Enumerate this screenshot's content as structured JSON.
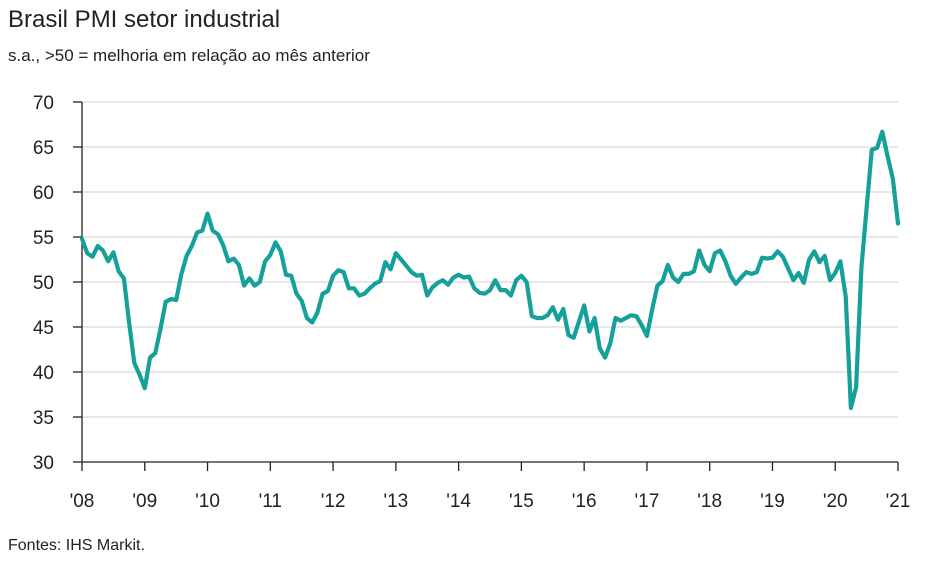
{
  "chart_data": {
    "type": "line",
    "title": "Brasil PMI setor industrial",
    "subtitle": "s.a., >50 = melhoria em relação ao mês anterior",
    "source": "Fontes: IHS Markit.",
    "xlabel": "",
    "ylabel": "",
    "ylim": [
      30,
      70
    ],
    "yticks": [
      30,
      35,
      40,
      45,
      50,
      55,
      60,
      65,
      70
    ],
    "xlim": [
      2008.0,
      2021.0
    ],
    "xticks": [
      {
        "value": 2008,
        "label": "'08"
      },
      {
        "value": 2009,
        "label": "'09"
      },
      {
        "value": 2010,
        "label": "'10"
      },
      {
        "value": 2011,
        "label": "'11"
      },
      {
        "value": 2012,
        "label": "'12"
      },
      {
        "value": 2013,
        "label": "'13"
      },
      {
        "value": 2014,
        "label": "'14"
      },
      {
        "value": 2015,
        "label": "'15"
      },
      {
        "value": 2016,
        "label": "'16"
      },
      {
        "value": 2017,
        "label": "'17"
      },
      {
        "value": 2018,
        "label": "'18"
      },
      {
        "value": 2019,
        "label": "'19"
      },
      {
        "value": 2020,
        "label": "'20"
      },
      {
        "value": 2021,
        "label": "'21"
      }
    ],
    "grid": "horizontal",
    "line_color": "#16a09a",
    "grid_color": "#d0d0d0",
    "series": [
      {
        "x": [
          2008.0,
          2008.083,
          2008.167,
          2008.25,
          2008.333,
          2008.417,
          2008.5,
          2008.583,
          2008.667,
          2008.75,
          2008.833,
          2008.917,
          2009.0,
          2009.083,
          2009.167,
          2009.25,
          2009.333,
          2009.417,
          2009.5,
          2009.583,
          2009.667,
          2009.75,
          2009.833,
          2009.917,
          2010.0,
          2010.083,
          2010.167,
          2010.25,
          2010.333,
          2010.417,
          2010.5,
          2010.583,
          2010.667,
          2010.75,
          2010.833,
          2010.917,
          2011.0,
          2011.083,
          2011.167,
          2011.25,
          2011.333,
          2011.417,
          2011.5,
          2011.583,
          2011.667,
          2011.75,
          2011.833,
          2011.917,
          2012.0,
          2012.083,
          2012.167,
          2012.25,
          2012.333,
          2012.417,
          2012.5,
          2012.583,
          2012.667,
          2012.75,
          2012.833,
          2012.917,
          2013.0,
          2013.083,
          2013.167,
          2013.25,
          2013.333,
          2013.417,
          2013.5,
          2013.583,
          2013.667,
          2013.75,
          2013.833,
          2013.917,
          2014.0,
          2014.083,
          2014.167,
          2014.25,
          2014.333,
          2014.417,
          2014.5,
          2014.583,
          2014.667,
          2014.75,
          2014.833,
          2014.917,
          2015.0,
          2015.083,
          2015.167,
          2015.25,
          2015.333,
          2015.417,
          2015.5,
          2015.583,
          2015.667,
          2015.75,
          2015.833,
          2015.917,
          2016.0,
          2016.083,
          2016.167,
          2016.25,
          2016.333,
          2016.417,
          2016.5,
          2016.583,
          2016.667,
          2016.75,
          2016.833,
          2016.917,
          2017.0,
          2017.083,
          2017.167,
          2017.25,
          2017.333,
          2017.417,
          2017.5,
          2017.583,
          2017.667,
          2017.75,
          2017.833,
          2017.917,
          2018.0,
          2018.083,
          2018.167,
          2018.25,
          2018.333,
          2018.417,
          2018.5,
          2018.583,
          2018.667,
          2018.75,
          2018.833,
          2018.917,
          2019.0,
          2019.083,
          2019.167,
          2019.25,
          2019.333,
          2019.417,
          2019.5,
          2019.583,
          2019.667,
          2019.75,
          2019.833,
          2019.917,
          2020.0,
          2020.083,
          2020.167,
          2020.25,
          2020.333,
          2020.417,
          2020.5,
          2020.583,
          2020.667,
          2020.75,
          2020.833,
          2020.917,
          2021.0
        ],
        "values": [
          54.8,
          53.2,
          52.8,
          54.0,
          53.5,
          52.3,
          53.3,
          51.2,
          50.4,
          45.5,
          41.0,
          39.7,
          38.2,
          41.6,
          42.1,
          44.8,
          47.8,
          48.1,
          48.0,
          50.9,
          52.9,
          54.0,
          55.5,
          55.7,
          57.6,
          55.7,
          55.3,
          54.1,
          52.3,
          52.6,
          51.9,
          49.6,
          50.4,
          49.6,
          50.0,
          52.3,
          53.0,
          54.4,
          53.4,
          50.8,
          50.7,
          48.7,
          47.9,
          46.0,
          45.5,
          46.6,
          48.7,
          49.0,
          50.7,
          51.3,
          51.1,
          49.3,
          49.3,
          48.5,
          48.7,
          49.3,
          49.8,
          50.1,
          52.2,
          51.4,
          53.2,
          52.5,
          51.8,
          51.1,
          50.7,
          50.8,
          48.5,
          49.4,
          49.9,
          50.2,
          49.7,
          50.5,
          50.8,
          50.5,
          50.6,
          49.3,
          48.8,
          48.7,
          49.1,
          50.2,
          49.1,
          49.1,
          48.5,
          50.2,
          50.7,
          50.0,
          46.2,
          46.0,
          46.0,
          46.3,
          47.2,
          45.8,
          47.0,
          44.1,
          43.8,
          45.6,
          47.4,
          44.5,
          46.0,
          42.6,
          41.6,
          43.2,
          46.0,
          45.7,
          46.0,
          46.3,
          46.2,
          45.2,
          44.0,
          46.9,
          49.6,
          50.1,
          51.9,
          50.5,
          50.0,
          50.9,
          50.9,
          51.2,
          53.5,
          51.9,
          51.2,
          53.2,
          53.5,
          52.3,
          50.7,
          49.8,
          50.5,
          51.1,
          50.9,
          51.1,
          52.7,
          52.6,
          52.7,
          53.4,
          52.8,
          51.5,
          50.2,
          51.0,
          49.9,
          52.5,
          53.4,
          52.2,
          52.9,
          50.2,
          51.0,
          52.3,
          48.4,
          36.0,
          38.3,
          51.6,
          58.2,
          64.7,
          64.9,
          66.7,
          64.0,
          61.5,
          56.5
        ]
      }
    ]
  }
}
